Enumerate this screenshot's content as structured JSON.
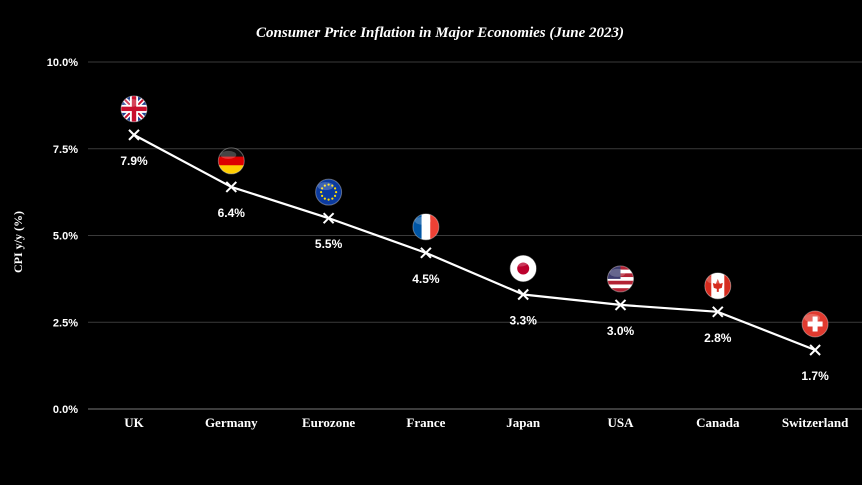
{
  "chart_data": {
    "type": "line",
    "title": "Consumer Price Inflation in Major Economies (June 2023)",
    "xlabel": "",
    "ylabel": "CPI y/y (%)",
    "ylim": [
      0,
      10
    ],
    "yticks": [
      "0.0%",
      "2.5%",
      "5.0%",
      "7.5%",
      "10.0%"
    ],
    "ytick_values": [
      0,
      2.5,
      5,
      7.5,
      10
    ],
    "grid": "horizontal",
    "legend": "none",
    "categories": [
      "UK",
      "Germany",
      "Eurozone",
      "France",
      "Japan",
      "USA",
      "Canada",
      "Switzerland"
    ],
    "values": [
      7.9,
      6.4,
      5.5,
      4.5,
      3.3,
      3.0,
      2.8,
      1.7
    ],
    "data_labels": [
      "7.9%",
      "6.4%",
      "5.5%",
      "4.5%",
      "3.3%",
      "3.0%",
      "2.8%",
      "1.7%"
    ],
    "flags": [
      "uk-flag",
      "germany-flag",
      "eu-flag",
      "france-flag",
      "japan-flag",
      "usa-flag",
      "canada-flag",
      "switzerland-flag"
    ],
    "colors": {
      "background": "#000000",
      "line": "#ffffff",
      "grid": "#3a3a3a",
      "text": "#ffffff"
    }
  }
}
